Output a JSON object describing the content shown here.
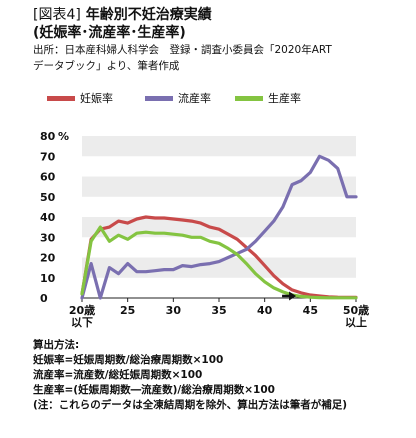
{
  "header": {
    "tag": "[図表4]",
    "title_line1": "年齢別不妊治療実績",
    "title_line2": "(妊娠率･流産率･生産率)",
    "source_line1": "出所：日本産科婦人科学会　登録・調査小委員会「2020年ART",
    "source_line2": "データブック」より、筆者作成"
  },
  "notes": {
    "heading": "算出方法:",
    "line1": "妊娠率=妊娠周期数/総治療周期数×100",
    "line2": "流産率=流産数/総妊娠周期数×100",
    "line3": "生産率=(妊娠周期数―流産数)/総治療周期数×100",
    "line4": "(注：これらのデータは全凍結周期を除外、算出方法は筆者が補足)"
  },
  "chart_data": {
    "type": "line",
    "y_unit": "%",
    "ylim": [
      0,
      80
    ],
    "yticks": [
      0,
      10,
      20,
      30,
      40,
      50,
      60,
      70,
      80
    ],
    "ytick_labels": [
      "0",
      "10",
      "20",
      "30",
      "40",
      "50",
      "60",
      "70",
      "80"
    ],
    "xlim": [
      20,
      50
    ],
    "xticks": [
      20,
      25,
      30,
      35,
      40,
      45,
      50
    ],
    "xtick_labels": [
      "20歳\n以下",
      "25",
      "30",
      "35",
      "40",
      "45",
      "50歳\n以上"
    ],
    "grid": "horizontal bands",
    "legend_position": "top-left",
    "arrow_marker": {
      "x": 43,
      "y": 1
    },
    "x": [
      20,
      21,
      22,
      23,
      24,
      25,
      26,
      27,
      28,
      29,
      30,
      31,
      32,
      33,
      34,
      35,
      36,
      37,
      38,
      39,
      40,
      41,
      42,
      43,
      44,
      45,
      46,
      47,
      48,
      49,
      50
    ],
    "series": [
      {
        "name": "妊娠率",
        "color": "#c84a4a",
        "values": [
          2,
          29,
          34,
          35,
          38,
          37,
          39,
          40,
          39.5,
          39.5,
          39,
          38.5,
          38,
          37,
          35,
          34,
          31.5,
          29,
          25,
          21,
          16,
          11,
          7,
          4,
          2.5,
          1.5,
          1,
          0.6,
          0.4,
          0.3,
          0.3
        ]
      },
      {
        "name": "流産率",
        "color": "#7a6fb0",
        "values": [
          0,
          17,
          0,
          15,
          12,
          17,
          13,
          13,
          13.5,
          14,
          14,
          16,
          15.5,
          16.5,
          17,
          18,
          20,
          22,
          24,
          28,
          33,
          38,
          45,
          56,
          58,
          62,
          70,
          68,
          64,
          50,
          50
        ]
      },
      {
        "name": "生産率",
        "color": "#84c441",
        "values": [
          2,
          28,
          35,
          28,
          31,
          29,
          32,
          32.5,
          32,
          32,
          31.5,
          31,
          30,
          30,
          28,
          27,
          24.5,
          21.5,
          17,
          12,
          8,
          5,
          3,
          1.5,
          0.8,
          0.4,
          0.2,
          0.1,
          0.1,
          0.1,
          0.1
        ]
      }
    ]
  }
}
